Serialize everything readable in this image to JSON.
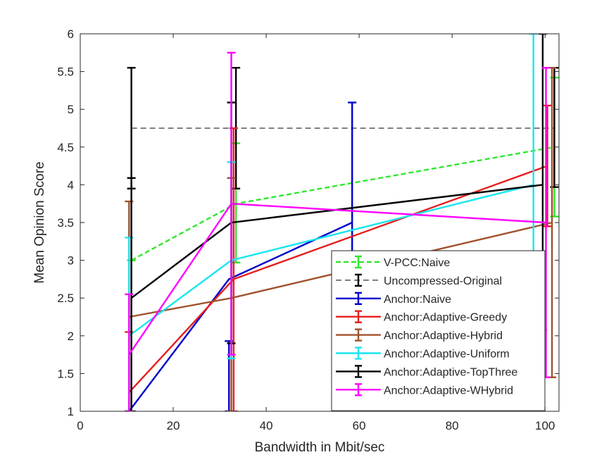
{
  "chart_data": {
    "type": "line",
    "title": "",
    "xlabel": "Bandwidth in Mbit/sec",
    "ylabel": "Mean Opinion Score",
    "xlim": [
      0,
      103
    ],
    "ylim": [
      1,
      6
    ],
    "xticks": [
      0,
      20,
      40,
      60,
      80,
      100
    ],
    "yticks": [
      1,
      1.5,
      2,
      2.5,
      3,
      3.5,
      4,
      4.5,
      5,
      5.5,
      6
    ],
    "xtick_labels": [
      "0",
      "20",
      "40",
      "60",
      "80",
      "100"
    ],
    "ytick_labels": [
      "1",
      "1.5",
      "2",
      "2.5",
      "3",
      "3.5",
      "4",
      "4.5",
      "5",
      "5.5",
      "6"
    ],
    "grid": false,
    "legend_position": "lower-right",
    "series": [
      {
        "name": "V-PCC:Naive",
        "color": "#2ee82e",
        "dash": "dashed",
        "points": [
          {
            "x": 11,
            "y": 3.0,
            "lo": 3.0,
            "hi": 3.0
          },
          {
            "x": 33.5,
            "y": 3.75,
            "lo": 2.97,
            "hi": 4.55
          },
          {
            "x": 102,
            "y": 4.5,
            "lo": 3.58,
            "hi": 5.42
          }
        ]
      },
      {
        "name": "Uncompressed-Original",
        "color": "#000000",
        "dash": "dashed",
        "points": [
          {
            "x": 11,
            "y": 4.75,
            "lo": 3.95,
            "hi": 5.55
          },
          {
            "x": 33.5,
            "y": 4.75,
            "lo": 3.95,
            "hi": 5.55
          },
          {
            "x": 102,
            "y": 4.75,
            "lo": 3.97,
            "hi": 5.55
          }
        ]
      },
      {
        "name": "Anchor:Naive",
        "color": "#0000cc",
        "dash": "solid",
        "points": [
          {
            "x": 10.5,
            "y": 1.0,
            "lo": 1.0,
            "hi": 1.0
          },
          {
            "x": 32,
            "y": 2.75,
            "lo": 1.0,
            "hi": 1.93
          },
          {
            "x": 58.5,
            "y": 3.5,
            "lo": 1.9,
            "hi": 5.09
          }
        ]
      },
      {
        "name": "Anchor:Adaptive-Greedy",
        "color": "#e61e1e",
        "dash": "solid",
        "points": [
          {
            "x": 10.5,
            "y": 1.25,
            "lo": 1.0,
            "hi": 2.05
          },
          {
            "x": 33,
            "y": 2.75,
            "lo": 1.0,
            "hi": 4.75
          },
          {
            "x": 100.5,
            "y": 4.25,
            "lo": 3.45,
            "hi": 5.05
          }
        ]
      },
      {
        "name": "Anchor:Adaptive-Hybrid",
        "color": "#a0522d",
        "dash": "solid",
        "points": [
          {
            "x": 10.5,
            "y": 2.25,
            "lo": 1.0,
            "hi": 3.78
          },
          {
            "x": 32.5,
            "y": 2.5,
            "lo": 1.0,
            "hi": 4.09
          },
          {
            "x": 101.5,
            "y": 3.5,
            "lo": 1.45,
            "hi": 5.55
          }
        ]
      },
      {
        "name": "Anchor:Adaptive-Uniform",
        "color": "#19e6f0",
        "dash": "solid",
        "points": [
          {
            "x": 10.5,
            "y": 2.0,
            "lo": 1.0,
            "hi": 3.3
          },
          {
            "x": 32.5,
            "y": 3.0,
            "lo": 1.7,
            "hi": 4.3
          },
          {
            "x": 97.5,
            "y": 4.0,
            "lo": 2.06,
            "hi": 6.0
          }
        ]
      },
      {
        "name": "Anchor:Adaptive-TopThree",
        "color": "#000000",
        "dash": "solid",
        "points": [
          {
            "x": 11,
            "y": 2.5,
            "lo": 1.0,
            "hi": 4.09
          },
          {
            "x": 32.5,
            "y": 3.5,
            "lo": 1.9,
            "hi": 5.09
          },
          {
            "x": 99.5,
            "y": 4.0,
            "lo": 2.08,
            "hi": 6.0
          }
        ]
      },
      {
        "name": "Anchor:Adaptive-WHybrid",
        "color": "#ff00ff",
        "dash": "solid",
        "points": [
          {
            "x": 10.5,
            "y": 1.75,
            "lo": 1.0,
            "hi": 2.55
          },
          {
            "x": 32.5,
            "y": 3.75,
            "lo": 1.75,
            "hi": 5.75
          },
          {
            "x": 100.2,
            "y": 3.5,
            "lo": 1.45,
            "hi": 5.55
          }
        ]
      }
    ]
  }
}
